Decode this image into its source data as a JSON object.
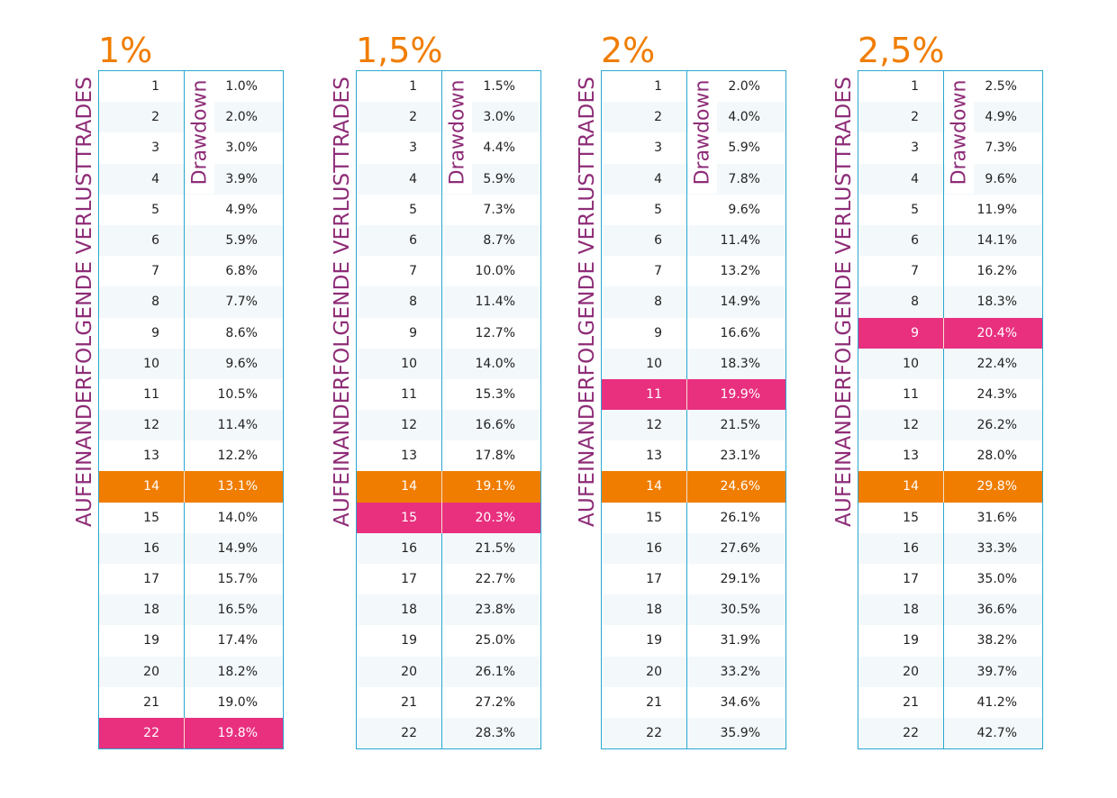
{
  "colors": {
    "title": "#f07d00",
    "label": "#8e2c77",
    "border": "#2aa8cf",
    "highlight_orange": "#f07d00",
    "highlight_pink": "#e8307f",
    "stripe": "#f3f8fb"
  },
  "row_axis_label": "AUFEINANDERFOLGENDE VERLUSTTRADES",
  "value_column_label": "Drawdown",
  "tables": [
    {
      "title": "1%",
      "orange_row": 14,
      "pink_row": 22,
      "rows": [
        [
          "1",
          "1.0%"
        ],
        [
          "2",
          "2.0%"
        ],
        [
          "3",
          "3.0%"
        ],
        [
          "4",
          "3.9%"
        ],
        [
          "5",
          "4.9%"
        ],
        [
          "6",
          "5.9%"
        ],
        [
          "7",
          "6.8%"
        ],
        [
          "8",
          "7.7%"
        ],
        [
          "9",
          "8.6%"
        ],
        [
          "10",
          "9.6%"
        ],
        [
          "11",
          "10.5%"
        ],
        [
          "12",
          "11.4%"
        ],
        [
          "13",
          "12.2%"
        ],
        [
          "14",
          "13.1%"
        ],
        [
          "15",
          "14.0%"
        ],
        [
          "16",
          "14.9%"
        ],
        [
          "17",
          "15.7%"
        ],
        [
          "18",
          "16.5%"
        ],
        [
          "19",
          "17.4%"
        ],
        [
          "20",
          "18.2%"
        ],
        [
          "21",
          "19.0%"
        ],
        [
          "22",
          "19.8%"
        ]
      ]
    },
    {
      "title": "1,5%",
      "orange_row": 14,
      "pink_row": 15,
      "rows": [
        [
          "1",
          "1.5%"
        ],
        [
          "2",
          "3.0%"
        ],
        [
          "3",
          "4.4%"
        ],
        [
          "4",
          "5.9%"
        ],
        [
          "5",
          "7.3%"
        ],
        [
          "6",
          "8.7%"
        ],
        [
          "7",
          "10.0%"
        ],
        [
          "8",
          "11.4%"
        ],
        [
          "9",
          "12.7%"
        ],
        [
          "10",
          "14.0%"
        ],
        [
          "11",
          "15.3%"
        ],
        [
          "12",
          "16.6%"
        ],
        [
          "13",
          "17.8%"
        ],
        [
          "14",
          "19.1%"
        ],
        [
          "15",
          "20.3%"
        ],
        [
          "16",
          "21.5%"
        ],
        [
          "17",
          "22.7%"
        ],
        [
          "18",
          "23.8%"
        ],
        [
          "19",
          "25.0%"
        ],
        [
          "20",
          "26.1%"
        ],
        [
          "21",
          "27.2%"
        ],
        [
          "22",
          "28.3%"
        ]
      ]
    },
    {
      "title": "2%",
      "orange_row": 14,
      "pink_row": 11,
      "rows": [
        [
          "1",
          "2.0%"
        ],
        [
          "2",
          "4.0%"
        ],
        [
          "3",
          "5.9%"
        ],
        [
          "4",
          "7.8%"
        ],
        [
          "5",
          "9.6%"
        ],
        [
          "6",
          "11.4%"
        ],
        [
          "7",
          "13.2%"
        ],
        [
          "8",
          "14.9%"
        ],
        [
          "9",
          "16.6%"
        ],
        [
          "10",
          "18.3%"
        ],
        [
          "11",
          "19.9%"
        ],
        [
          "12",
          "21.5%"
        ],
        [
          "13",
          "23.1%"
        ],
        [
          "14",
          "24.6%"
        ],
        [
          "15",
          "26.1%"
        ],
        [
          "16",
          "27.6%"
        ],
        [
          "17",
          "29.1%"
        ],
        [
          "18",
          "30.5%"
        ],
        [
          "19",
          "31.9%"
        ],
        [
          "20",
          "33.2%"
        ],
        [
          "21",
          "34.6%"
        ],
        [
          "22",
          "35.9%"
        ]
      ]
    },
    {
      "title": "2,5%",
      "orange_row": 14,
      "pink_row": 9,
      "rows": [
        [
          "1",
          "2.5%"
        ],
        [
          "2",
          "4.9%"
        ],
        [
          "3",
          "7.3%"
        ],
        [
          "4",
          "9.6%"
        ],
        [
          "5",
          "11.9%"
        ],
        [
          "6",
          "14.1%"
        ],
        [
          "7",
          "16.2%"
        ],
        [
          "8",
          "18.3%"
        ],
        [
          "9",
          "20.4%"
        ],
        [
          "10",
          "22.4%"
        ],
        [
          "11",
          "24.3%"
        ],
        [
          "12",
          "26.2%"
        ],
        [
          "13",
          "28.0%"
        ],
        [
          "14",
          "29.8%"
        ],
        [
          "15",
          "31.6%"
        ],
        [
          "16",
          "33.3%"
        ],
        [
          "17",
          "35.0%"
        ],
        [
          "18",
          "36.6%"
        ],
        [
          "19",
          "38.2%"
        ],
        [
          "20",
          "39.7%"
        ],
        [
          "21",
          "41.2%"
        ],
        [
          "22",
          "42.7%"
        ]
      ]
    }
  ]
}
